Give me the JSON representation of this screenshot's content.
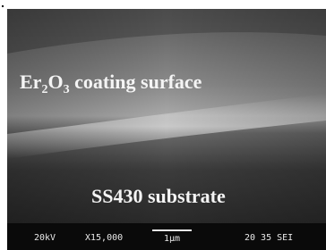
{
  "image": {
    "coating_label": {
      "parts": [
        "Er",
        "2",
        "O",
        "3",
        " coating surface"
      ]
    },
    "substrate_label": "SS430 substrate",
    "info_bar": {
      "voltage": "20kV",
      "magnification": "X15,000",
      "scale": "1μm",
      "code": "20 35 SEI"
    }
  }
}
